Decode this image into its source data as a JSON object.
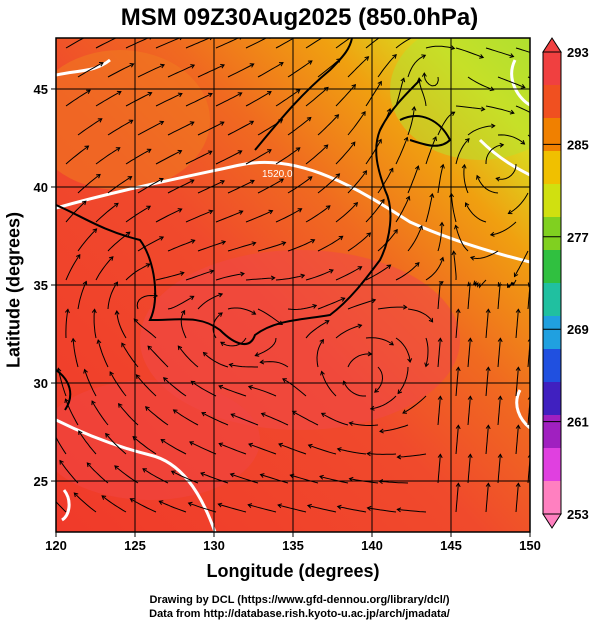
{
  "title": "MSM 09Z30Aug2025 (850.0hPa)",
  "xaxis": {
    "label": "Longitude (degrees)",
    "ticks": [
      "120",
      "125",
      "130",
      "135",
      "140",
      "145",
      "150"
    ],
    "range": [
      120,
      150
    ]
  },
  "yaxis": {
    "label": "Latitude  (degrees)",
    "ticks": [
      "25",
      "30",
      "35",
      "40",
      "45"
    ],
    "range": [
      22.4,
      47.6
    ]
  },
  "colorbar": {
    "labels": [
      "293",
      "285",
      "277",
      "269",
      "261",
      "253"
    ],
    "min": 253,
    "max": 293,
    "colors": [
      "#ff80c0",
      "#e040e0",
      "#a020c0",
      "#4020c0",
      "#2050e0",
      "#20a0e0",
      "#20c0a0",
      "#30c040",
      "#80d020",
      "#d0e010",
      "#f0c000",
      "#f08000",
      "#f05020",
      "#f04040"
    ]
  },
  "contour_label": "1520.0",
  "credits": [
    "Drawing by DCL (https://www.gfd-dennou.org/library/dcl/)",
    "Data from http://database.rish.kyoto-u.ac.jp/arch/jmadata/"
  ]
}
